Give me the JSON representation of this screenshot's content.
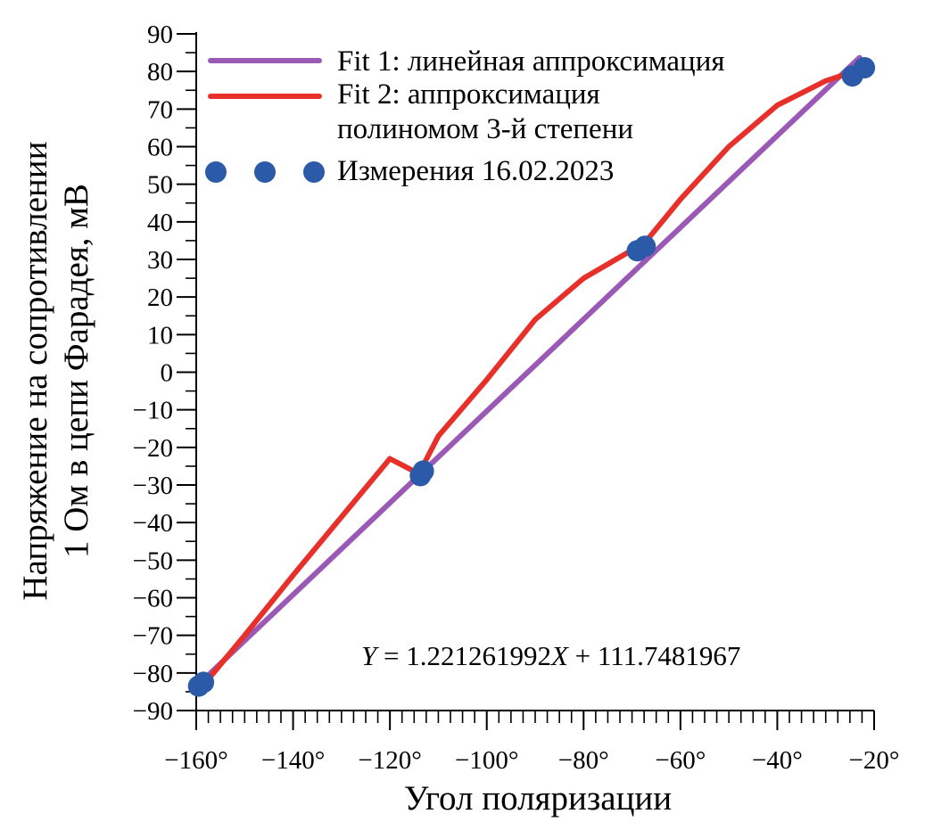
{
  "chart_data": {
    "type": "scatter",
    "xlabel": "Угол поляризации",
    "ylabel_line1": "Напряжение на сопротивлении",
    "ylabel_line2": "1 Ом в цепи Фарадея, мВ",
    "xlim": [
      -160,
      -20
    ],
    "ylim": [
      -90,
      90
    ],
    "x_ticks": [
      -160,
      -140,
      -120,
      -100,
      -80,
      -60,
      -40,
      -20
    ],
    "x_tick_labels": [
      "−160°",
      "−140°",
      "−120°",
      "−100°",
      "−80°",
      "−60°",
      "−40°",
      "−20°"
    ],
    "y_ticks": [
      90,
      80,
      70,
      60,
      50,
      40,
      30,
      20,
      10,
      0,
      -10,
      -20,
      -30,
      -40,
      -50,
      -60,
      -70,
      -80,
      -90
    ],
    "y_tick_labels": [
      "90",
      "80",
      "70",
      "60",
      "50",
      "40",
      "30",
      "20",
      "10",
      "0",
      "−10",
      "−20",
      "−30",
      "−40",
      "−50",
      "−60",
      "−70",
      "−80",
      "−90"
    ],
    "grid": false,
    "legend_position": "top-left",
    "series": [
      {
        "name": "Fit 1: линейная аппроксимация",
        "kind": "line",
        "color": "#9b59b6",
        "x": [
          -159,
          -23
        ],
        "y": [
          -82.4,
          83.7
        ]
      },
      {
        "name_line1": "Fit 2: аппроксимация",
        "name_line2": "полиномом 3-й степени",
        "kind": "line",
        "color": "#e8302a",
        "x": [
          -159,
          -150,
          -140,
          -130,
          -120,
          -114,
          -110,
          -100,
          -90,
          -80,
          -70,
          -67,
          -60,
          -50,
          -40,
          -30,
          -23
        ],
        "y": [
          -84.0,
          -70.0,
          -54.0,
          -38.5,
          -23.0,
          -27.0,
          -17.0,
          -2.0,
          14.0,
          25.0,
          32.5,
          35.0,
          46.0,
          60.0,
          71.0,
          77.5,
          80.5
        ]
      },
      {
        "name": "Измерения 16.02.2023",
        "kind": "scatter",
        "color": "#2a5aa8",
        "x": [
          -159.5,
          -158.5,
          -113.7,
          -113.1,
          -68.9,
          -67.3,
          -24.5,
          -22.0
        ],
        "y": [
          -83.5,
          -82.5,
          -27.5,
          -26.3,
          32.3,
          33.5,
          78.8,
          81.0
        ]
      }
    ],
    "annotation": {
      "y_var": "Y",
      "eq_mid": " = 1.221261992",
      "x_var": "X",
      "eq_end": " + 111.7481967"
    }
  }
}
